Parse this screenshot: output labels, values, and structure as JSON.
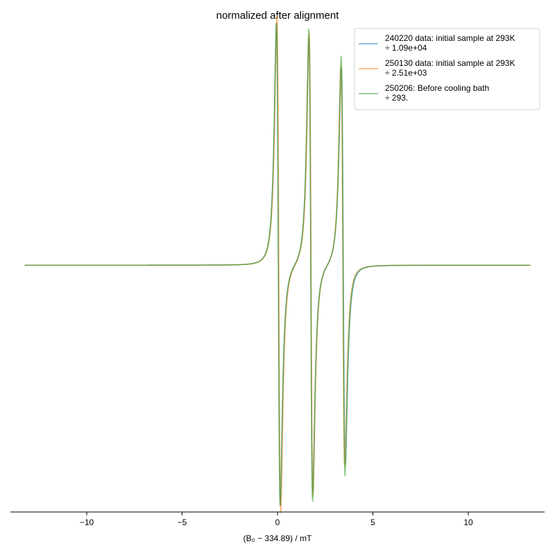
{
  "chart_data": {
    "type": "line",
    "title": "normalized after alignment",
    "xlabel": "(B₀ − 334.89) / mT",
    "ylabel": "",
    "xlim": [
      -14.0,
      14.0
    ],
    "ylim": [
      -1.15,
      1.1
    ],
    "xticks": [
      -10,
      -5,
      0,
      5,
      10
    ],
    "xtick_labels": [
      "−10",
      "−5",
      "0",
      "5",
      "10"
    ],
    "yaxis_visible": false,
    "grid": false,
    "legend_position": "top-right",
    "series": [
      {
        "name": "240220 data: initial sample at 293K ÷ 1.09e+04",
        "legend_lines": [
          "240220 data: initial sample at 293K",
          "÷ 1.09e+04"
        ],
        "color": "#1f77b4",
        "lines": [
          {
            "center": 0.05,
            "amp": 1.0,
            "w": 0.1
          },
          {
            "center": 1.75,
            "amp": 0.94,
            "w": 0.1
          },
          {
            "center": 3.45,
            "amp": 0.82,
            "w": 0.105
          }
        ]
      },
      {
        "name": "250130 data: initial sample at 293K ÷ 2.51e+03",
        "legend_lines": [
          "250130 data: initial sample at 293K",
          "÷ 2.51e+03"
        ],
        "color": "#ff7f0e",
        "lines": [
          {
            "center": 0.07,
            "amp": 1.03,
            "w": 0.1
          },
          {
            "center": 1.76,
            "amp": 0.96,
            "w": 0.1
          },
          {
            "center": 3.42,
            "amp": 0.83,
            "w": 0.1
          }
        ]
      },
      {
        "name": "250206: Before cooling bath ÷ 293.",
        "legend_lines": [
          "250206: Before cooling bath",
          "÷ 293."
        ],
        "color": "#2ca02c",
        "lines": [
          {
            "center": 0.04,
            "amp": 1.0,
            "w": 0.1
          },
          {
            "center": 1.74,
            "amp": 0.98,
            "w": 0.1
          },
          {
            "center": 3.44,
            "amp": 0.87,
            "w": 0.1
          }
        ]
      }
    ]
  }
}
